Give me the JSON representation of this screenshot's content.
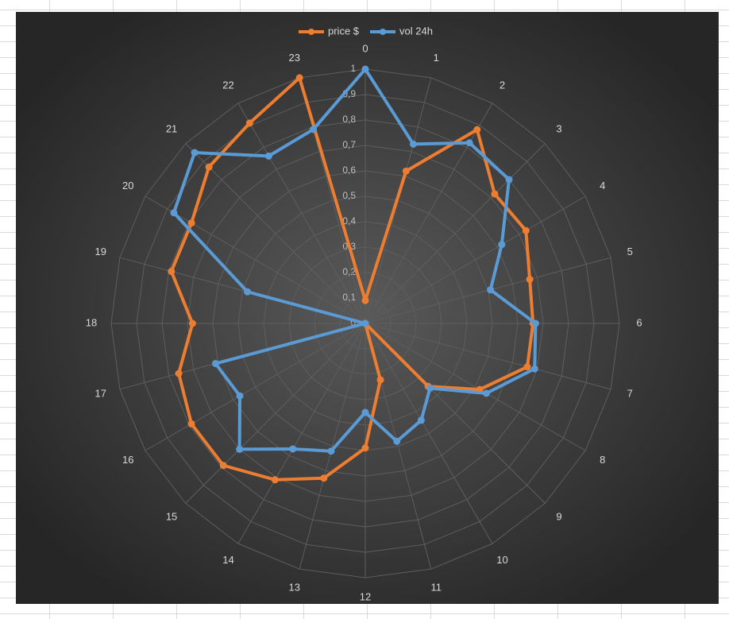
{
  "chart_data": {
    "type": "radar",
    "categories": [
      "0",
      "1",
      "2",
      "3",
      "4",
      "5",
      "6",
      "7",
      "8",
      "9",
      "10",
      "11",
      "12",
      "13",
      "14",
      "15",
      "16",
      "17",
      "18",
      "19",
      "20",
      "21",
      "22",
      "23"
    ],
    "series": [
      {
        "name": "price $",
        "color": "#ED7D31",
        "values": [
          0.09,
          0.62,
          0.88,
          0.72,
          0.73,
          0.67,
          0.66,
          0.66,
          0.52,
          0.35,
          0,
          0.23,
          0.49,
          0.63,
          0.71,
          0.79,
          0.79,
          0.76,
          0.68,
          0.79,
          0.79,
          0.87,
          0.91,
          1.0
        ]
      },
      {
        "name": "vol 24h",
        "color": "#5B9BD5",
        "values": [
          1.0,
          0.73,
          0.82,
          0.8,
          0.62,
          0.51,
          0.67,
          0.69,
          0.55,
          0.36,
          0.44,
          0.48,
          0.35,
          0.52,
          0.57,
          0.7,
          0.57,
          0.61,
          0,
          0.48,
          0.87,
          0.95,
          0.76,
          0.79
        ]
      }
    ],
    "ylim": [
      0,
      1
    ],
    "yticks": [
      0,
      {
        "value": 0.1,
        "label": "0,1"
      },
      {
        "value": 0.2,
        "label": "0,2"
      },
      {
        "value": 0.3,
        "label": "0,3"
      },
      {
        "value": 0.4,
        "label": "0,4"
      },
      {
        "value": 0.5,
        "label": "0,5"
      },
      {
        "value": 0.6,
        "label": "0,6"
      },
      {
        "value": 0.7,
        "label": "0,7"
      },
      {
        "value": 0.8,
        "label": "0,8"
      },
      {
        "value": 0.9,
        "label": "0,9"
      },
      1
    ],
    "grid": true,
    "legend": "top"
  }
}
